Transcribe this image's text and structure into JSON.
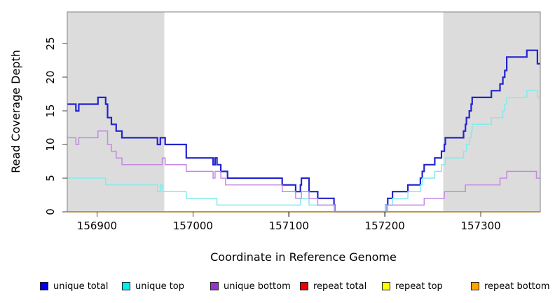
{
  "figure": {
    "background": "#ffffff",
    "plot_region_fill": "#ffffff",
    "shaded_region_fill": "#dcdcdc",
    "box_color": "#828282",
    "tick_color": "#404040"
  },
  "legend": {
    "items": [
      {
        "label": "unique total",
        "color": "#0000ee"
      },
      {
        "label": "unique top",
        "color": "#00eeee"
      },
      {
        "label": "unique bottom",
        "color": "#9a32cd"
      },
      {
        "label": "repeat total",
        "color": "#ee0000"
      },
      {
        "label": "repeat top",
        "color": "#ffff00"
      },
      {
        "label": "repeat bottom",
        "color": "#ffa500"
      }
    ]
  },
  "chart_data": {
    "type": "line",
    "step": true,
    "title": "",
    "xlabel": "Coordinate in Reference Genome",
    "ylabel": "Read Coverage Depth",
    "xlim": [
      156869,
      157362
    ],
    "ylim": [
      0,
      29.7
    ],
    "x_ticks": [
      156900,
      157000,
      157100,
      157200,
      157300
    ],
    "y_ticks": [
      0,
      5,
      10,
      15,
      20,
      25
    ],
    "grid": false,
    "legend_position": "bottom",
    "shaded_regions": [
      {
        "from": 156869,
        "to": 156970
      },
      {
        "from": 157261,
        "to": 157362
      }
    ],
    "series": [
      {
        "name": "unique total",
        "color": "#2323cf",
        "width": 2.2,
        "points": [
          [
            156869,
            16
          ],
          [
            156878,
            15
          ],
          [
            156881,
            16
          ],
          [
            156901,
            17
          ],
          [
            156909,
            16
          ],
          [
            156911,
            14
          ],
          [
            156915,
            13
          ],
          [
            156920,
            12
          ],
          [
            156926,
            11
          ],
          [
            156963,
            10
          ],
          [
            156966,
            11
          ],
          [
            156971,
            10
          ],
          [
            156993,
            8
          ],
          [
            157021,
            7
          ],
          [
            157023,
            8
          ],
          [
            157025,
            7
          ],
          [
            157029,
            6
          ],
          [
            157036,
            5
          ],
          [
            157093,
            4
          ],
          [
            157107,
            3
          ],
          [
            157112,
            4
          ],
          [
            157113,
            5
          ],
          [
            157121,
            3
          ],
          [
            157130,
            2
          ],
          [
            157147,
            1
          ],
          [
            157148,
            0
          ],
          [
            157201,
            1
          ],
          [
            157203,
            2
          ],
          [
            157208,
            3
          ],
          [
            157224,
            4
          ],
          [
            157237,
            5
          ],
          [
            157239,
            6
          ],
          [
            157241,
            7
          ],
          [
            157252,
            8
          ],
          [
            157259,
            9
          ],
          [
            157262,
            10
          ],
          [
            157263,
            11
          ],
          [
            157282,
            12
          ],
          [
            157284,
            13
          ],
          [
            157285,
            14
          ],
          [
            157288,
            15
          ],
          [
            157290,
            16
          ],
          [
            157291,
            17
          ],
          [
            157311,
            18
          ],
          [
            157320,
            19
          ],
          [
            157323,
            20
          ],
          [
            157325,
            21
          ],
          [
            157327,
            23
          ],
          [
            157348,
            24
          ],
          [
            157359,
            22
          ],
          [
            157362,
            22
          ]
        ]
      },
      {
        "name": "unique top",
        "color": "#82ebeb",
        "width": 1.5,
        "points": [
          [
            156869,
            5
          ],
          [
            156909,
            4
          ],
          [
            156963,
            3
          ],
          [
            156966,
            4
          ],
          [
            156968,
            3
          ],
          [
            156993,
            2
          ],
          [
            157025,
            1
          ],
          [
            157112,
            2
          ],
          [
            157121,
            1
          ],
          [
            157147,
            0
          ],
          [
            157201,
            1
          ],
          [
            157208,
            2
          ],
          [
            157224,
            3
          ],
          [
            157237,
            4
          ],
          [
            157239,
            5
          ],
          [
            157252,
            6
          ],
          [
            157259,
            7
          ],
          [
            157263,
            8
          ],
          [
            157282,
            9
          ],
          [
            157285,
            10
          ],
          [
            157288,
            11
          ],
          [
            157290,
            12
          ],
          [
            157291,
            13
          ],
          [
            157311,
            14
          ],
          [
            157323,
            15
          ],
          [
            157325,
            16
          ],
          [
            157327,
            17
          ],
          [
            157348,
            18
          ],
          [
            157359,
            17
          ],
          [
            157362,
            17
          ]
        ]
      },
      {
        "name": "unique bottom",
        "color": "#c289e2",
        "width": 1.5,
        "points": [
          [
            156869,
            11
          ],
          [
            156878,
            10
          ],
          [
            156881,
            11
          ],
          [
            156901,
            12
          ],
          [
            156911,
            10
          ],
          [
            156915,
            9
          ],
          [
            156920,
            8
          ],
          [
            156926,
            7
          ],
          [
            156968,
            8
          ],
          [
            156971,
            7
          ],
          [
            156993,
            6
          ],
          [
            157021,
            5
          ],
          [
            157023,
            6
          ],
          [
            157029,
            5
          ],
          [
            157034,
            4
          ],
          [
            157093,
            3
          ],
          [
            157107,
            2
          ],
          [
            157113,
            3
          ],
          [
            157121,
            2
          ],
          [
            157130,
            1
          ],
          [
            157148,
            0
          ],
          [
            157203,
            1
          ],
          [
            157241,
            2
          ],
          [
            157262,
            3
          ],
          [
            157284,
            4
          ],
          [
            157320,
            5
          ],
          [
            157327,
            6
          ],
          [
            157358,
            5
          ],
          [
            157362,
            5
          ]
        ]
      },
      {
        "name": "repeat total",
        "color": "#cc0000",
        "width": 1.5,
        "points": [
          [
            156869,
            0
          ],
          [
            157362,
            0
          ]
        ]
      },
      {
        "name": "repeat top",
        "color": "#ffff00",
        "width": 1.5,
        "points": [
          [
            156869,
            0
          ],
          [
            157362,
            0
          ]
        ]
      },
      {
        "name": "repeat bottom",
        "color": "#ffa500",
        "width": 2,
        "points": [
          [
            156869,
            0
          ],
          [
            157362,
            0
          ]
        ]
      }
    ]
  }
}
